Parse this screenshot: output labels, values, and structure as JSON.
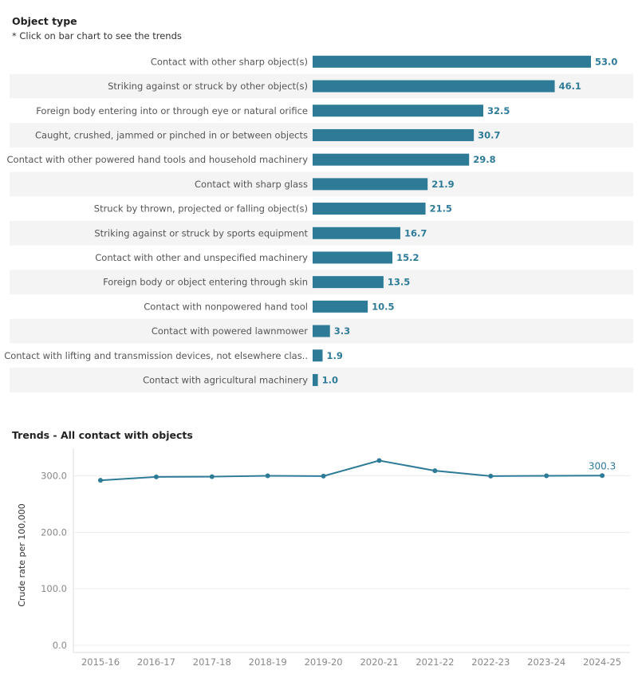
{
  "bar_section": {
    "title": "Object type",
    "subtitle": "* Click on bar chart to see the trends"
  },
  "trend_section": {
    "title": "Trends - All contact with objects"
  },
  "colors": {
    "bar": "#2e7b98",
    "line": "#2e7b98",
    "label": "#2e7b98",
    "band": "#f4f4f4",
    "grid": "#ececec",
    "axis_text": "#888888"
  },
  "chart_data": [
    {
      "type": "bar",
      "orientation": "horizontal",
      "categories": [
        "Contact with other sharp object(s)",
        "Striking against or struck by other object(s)",
        "Foreign body entering into or through eye or natural orifice",
        "Caught, crushed, jammed or pinched in or between objects",
        "Contact with other powered hand tools and household machinery",
        "Contact with sharp glass",
        "Struck by thrown, projected or falling object(s)",
        "Striking against or struck by sports equipment",
        "Contact with other and unspecified machinery",
        "Foreign body or object entering through skin",
        "Contact with nonpowered hand tool",
        "Contact with powered lawnmower",
        "Contact with lifting and transmission devices, not elsewhere clas..",
        "Contact with agricultural machinery"
      ],
      "values": [
        53.0,
        46.1,
        32.5,
        30.7,
        29.8,
        21.9,
        21.5,
        16.7,
        15.2,
        13.5,
        10.5,
        3.3,
        1.9,
        1.0
      ],
      "value_labels": [
        "53.0",
        "46.1",
        "32.5",
        "30.7",
        "29.8",
        "21.9",
        "21.5",
        "16.7",
        "15.2",
        "13.5",
        "10.5",
        "3.3",
        "1.9",
        "1.0"
      ],
      "xlim": [
        0,
        53.0
      ]
    },
    {
      "type": "line",
      "x": [
        "2015-16",
        "2016-17",
        "2017-18",
        "2018-19",
        "2019-20",
        "2020-21",
        "2021-22",
        "2022-23",
        "2023-24",
        "2024-25"
      ],
      "y": [
        292,
        298,
        298.5,
        300,
        299.5,
        327,
        309,
        299.5,
        300,
        300.3
      ],
      "ylabel": "Crude rate per 100,000",
      "yticks": [
        "0.0",
        "100.0",
        "200.0",
        "300.0"
      ],
      "ytick_values": [
        0,
        100,
        200,
        300
      ],
      "ylim": [
        0,
        348
      ],
      "last_point_label": "300.3",
      "grid": true
    }
  ]
}
